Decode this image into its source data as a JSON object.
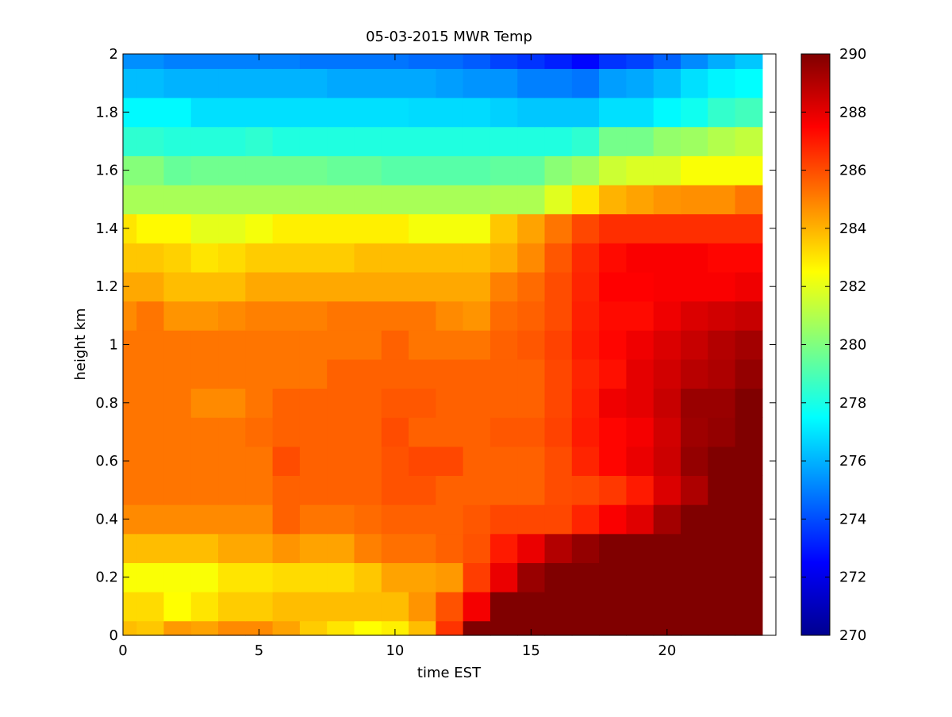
{
  "chart_data": {
    "type": "heatmap",
    "title": "05-03-2015 MWR Temp",
    "xlabel": "time EST",
    "ylabel": "height km",
    "xlim": [
      0,
      24
    ],
    "ylim": [
      0,
      2
    ],
    "x_ticks": [
      "0",
      "5",
      "10",
      "15",
      "20"
    ],
    "y_ticks": [
      "0",
      "0.2",
      "0.4",
      "0.6",
      "0.8",
      "1",
      "1.2",
      "1.4",
      "1.6",
      "1.8",
      "2"
    ],
    "colorbar": {
      "min": 270,
      "max": 290,
      "ticks": [
        "270",
        "272",
        "274",
        "276",
        "278",
        "280",
        "282",
        "284",
        "286",
        "288",
        "290"
      ],
      "colormap": "jet"
    },
    "time_edges": [
      0,
      0.5,
      1.5,
      2.5,
      3.5,
      4.5,
      5.5,
      6.5,
      7.5,
      8.5,
      9.5,
      10.5,
      11.5,
      12.5,
      13.5,
      14.5,
      15.5,
      16.5,
      17.5,
      18.5,
      19.5,
      20.5,
      21.5,
      22.5,
      23.5
    ],
    "height_edges": [
      0,
      0.05,
      0.15,
      0.25,
      0.35,
      0.45,
      0.55,
      0.65,
      0.75,
      0.85,
      0.95,
      1.05,
      1.15,
      1.25,
      1.35,
      1.45,
      1.55,
      1.65,
      1.75,
      1.85,
      1.95,
      2.0
    ],
    "values": [
      [
        283.8,
        283.6,
        284.5,
        284.3,
        284.8,
        284.8,
        284.3,
        283.5,
        283.0,
        282.5,
        282.8,
        283.8,
        286.5,
        290.0,
        290.0,
        290.0,
        290.0,
        290.0,
        290.0,
        290.0,
        290.0,
        290.0,
        290.0,
        290.0
      ],
      [
        283.2,
        283.2,
        282.5,
        283.0,
        283.5,
        283.5,
        283.8,
        283.8,
        283.8,
        283.8,
        283.8,
        284.6,
        285.9,
        287.7,
        290.0,
        290.0,
        290.0,
        290.0,
        290.0,
        290.0,
        290.0,
        290.0,
        290.0,
        290.0
      ],
      [
        282.4,
        282.4,
        282.4,
        282.4,
        283.0,
        283.0,
        283.2,
        283.2,
        283.2,
        283.6,
        284.3,
        284.3,
        284.5,
        286.3,
        287.9,
        289.5,
        290.0,
        290.0,
        290.0,
        290.0,
        290.0,
        290.0,
        290.0,
        290.0
      ],
      [
        283.8,
        283.8,
        283.8,
        283.8,
        284.2,
        284.2,
        284.6,
        284.3,
        284.3,
        285.0,
        285.3,
        285.3,
        285.6,
        285.9,
        287.0,
        287.9,
        289.0,
        289.6,
        290.0,
        290.0,
        290.0,
        290.0,
        290.0,
        290.0
      ],
      [
        284.8,
        284.8,
        284.8,
        284.8,
        284.8,
        284.8,
        285.6,
        285.2,
        285.2,
        285.4,
        285.6,
        285.6,
        285.6,
        285.8,
        286.1,
        286.1,
        286.1,
        286.8,
        287.6,
        288.1,
        289.3,
        290.0,
        290.0,
        290.0
      ],
      [
        285.2,
        285.2,
        285.2,
        285.2,
        285.2,
        285.2,
        285.6,
        285.6,
        285.6,
        285.6,
        285.9,
        285.9,
        285.6,
        285.6,
        285.6,
        285.6,
        286.0,
        286.1,
        286.4,
        287.0,
        288.2,
        289.1,
        290.0,
        290.0
      ],
      [
        285.2,
        285.2,
        285.2,
        285.2,
        285.2,
        285.2,
        286.0,
        285.6,
        285.6,
        285.6,
        285.9,
        286.1,
        286.1,
        285.6,
        285.6,
        285.6,
        286.0,
        286.8,
        287.4,
        287.9,
        288.5,
        289.6,
        290.0,
        290.0
      ],
      [
        285.2,
        285.2,
        285.2,
        285.2,
        285.2,
        285.4,
        285.6,
        285.6,
        285.6,
        285.6,
        286.0,
        285.6,
        285.6,
        285.6,
        285.8,
        285.8,
        286.2,
        287.0,
        287.4,
        287.7,
        288.4,
        289.4,
        289.6,
        290.0
      ],
      [
        285.2,
        285.2,
        285.2,
        284.8,
        284.8,
        285.2,
        285.6,
        285.6,
        285.6,
        285.6,
        285.8,
        285.8,
        285.6,
        285.6,
        285.6,
        285.6,
        286.1,
        286.9,
        287.8,
        288.0,
        288.6,
        289.5,
        289.5,
        290.0
      ],
      [
        285.2,
        285.2,
        285.2,
        285.2,
        285.2,
        285.2,
        285.2,
        285.2,
        285.6,
        285.6,
        285.6,
        285.6,
        285.6,
        285.6,
        285.6,
        285.6,
        286.1,
        286.8,
        287.2,
        288.0,
        288.4,
        288.9,
        289.1,
        289.6
      ],
      [
        285.2,
        285.2,
        285.2,
        285.2,
        285.2,
        285.2,
        285.2,
        285.2,
        285.2,
        285.2,
        285.6,
        285.2,
        285.2,
        285.2,
        285.6,
        285.8,
        286.2,
        287.0,
        287.4,
        287.8,
        288.2,
        288.6,
        289.0,
        289.3
      ],
      [
        284.8,
        285.2,
        284.6,
        284.6,
        284.8,
        285.0,
        285.0,
        285.0,
        285.2,
        285.2,
        285.2,
        285.2,
        284.8,
        284.6,
        285.4,
        285.6,
        286.0,
        286.9,
        287.3,
        287.3,
        287.8,
        288.2,
        288.4,
        288.6
      ],
      [
        284.2,
        284.2,
        283.8,
        283.8,
        283.8,
        284.2,
        284.2,
        284.2,
        284.2,
        284.2,
        284.2,
        284.2,
        284.2,
        284.2,
        285.0,
        285.4,
        286.0,
        286.8,
        287.5,
        287.5,
        287.6,
        287.6,
        287.6,
        287.8
      ],
      [
        283.6,
        283.6,
        283.4,
        283.0,
        283.2,
        283.5,
        283.5,
        283.5,
        283.5,
        283.8,
        283.8,
        283.8,
        283.8,
        283.8,
        284.1,
        284.8,
        285.8,
        286.7,
        287.3,
        287.6,
        287.6,
        287.6,
        287.4,
        287.4
      ],
      [
        283.0,
        282.6,
        282.6,
        282.0,
        282.0,
        282.3,
        282.8,
        282.8,
        282.8,
        282.8,
        282.8,
        282.3,
        282.3,
        282.3,
        283.6,
        284.3,
        285.2,
        286.1,
        286.6,
        286.6,
        286.6,
        286.6,
        286.6,
        286.6
      ],
      [
        280.8,
        280.8,
        280.8,
        280.8,
        280.8,
        280.8,
        280.8,
        280.8,
        280.8,
        280.8,
        280.8,
        280.8,
        280.8,
        280.8,
        280.9,
        280.9,
        281.9,
        283.0,
        284.0,
        284.3,
        284.6,
        284.7,
        284.7,
        285.2
      ],
      [
        280.1,
        280.1,
        279.5,
        279.7,
        279.7,
        279.7,
        279.7,
        279.7,
        279.5,
        279.5,
        279.2,
        279.2,
        279.2,
        279.2,
        279.4,
        279.4,
        280.2,
        280.6,
        281.5,
        281.8,
        281.8,
        282.4,
        282.4,
        282.4
      ],
      [
        278.4,
        278.4,
        278.2,
        278.2,
        278.2,
        278.4,
        278.1,
        278.1,
        278.1,
        278.1,
        278.1,
        278.1,
        278.1,
        278.1,
        278.1,
        278.1,
        278.1,
        278.4,
        279.8,
        279.8,
        280.4,
        280.6,
        281.0,
        281.3
      ],
      [
        277.4,
        277.4,
        277.4,
        276.9,
        276.9,
        276.9,
        276.9,
        276.9,
        276.9,
        276.9,
        276.9,
        276.8,
        276.8,
        276.8,
        276.6,
        276.4,
        276.4,
        276.4,
        276.9,
        276.9,
        277.4,
        277.8,
        278.5,
        278.8
      ],
      [
        276.2,
        276.2,
        276.0,
        276.0,
        276.0,
        276.0,
        276.0,
        276.0,
        275.8,
        275.8,
        275.8,
        275.8,
        275.6,
        275.4,
        275.4,
        275.0,
        275.0,
        274.8,
        275.6,
        275.8,
        276.2,
        276.9,
        277.3,
        277.5
      ],
      [
        275.3,
        275.3,
        275.0,
        275.0,
        275.0,
        275.0,
        275.0,
        274.8,
        274.8,
        274.8,
        274.8,
        274.6,
        274.6,
        274.3,
        273.8,
        273.5,
        273.1,
        272.6,
        273.5,
        273.8,
        274.4,
        275.2,
        275.9,
        276.4
      ]
    ]
  }
}
